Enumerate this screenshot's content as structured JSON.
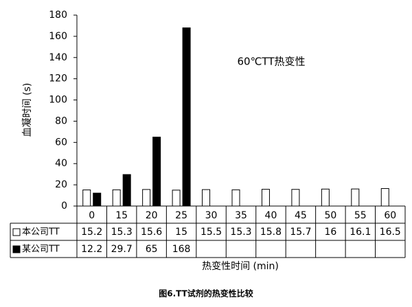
{
  "chart_data": {
    "type": "bar",
    "annotation": "60℃TT热变性",
    "y_label": "血凝时间 (s)",
    "x_label": "热变性时间 (min)",
    "caption": "图6.TT试剂的热变性比较",
    "categories": [
      "0",
      "15",
      "20",
      "25",
      "30",
      "35",
      "40",
      "45",
      "50",
      "55",
      "60"
    ],
    "series": [
      {
        "name": "本公司TT",
        "color": "#ffffff",
        "values": [
          15.2,
          15.3,
          15.6,
          15,
          15.5,
          15.3,
          15.8,
          15.7,
          16,
          16.1,
          16.5
        ]
      },
      {
        "name": "某公司TT",
        "color": "#000000",
        "values": [
          12.2,
          29.7,
          65,
          168,
          null,
          null,
          null,
          null,
          null,
          null,
          null
        ]
      }
    ],
    "ylim": [
      0,
      180
    ],
    "yticks": [
      0,
      20,
      40,
      60,
      80,
      100,
      120,
      140,
      160,
      180
    ]
  }
}
